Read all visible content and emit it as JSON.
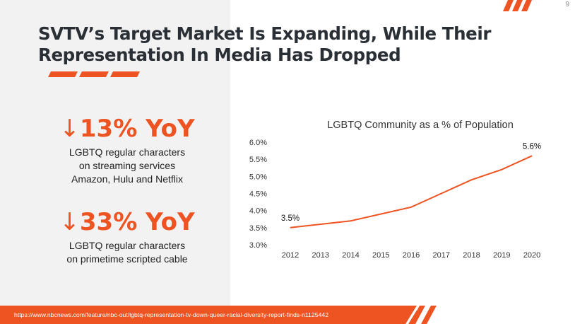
{
  "page": {
    "number": "9"
  },
  "colors": {
    "accent": "#EE5322",
    "title": "#2A2F35",
    "panel": "#F2F2F2"
  },
  "title": {
    "line1": "SVTV’s Target Market Is Expanding, While Their",
    "line2": "Representation In Media Has Dropped"
  },
  "stats": [
    {
      "arrow": "↓",
      "value": "13% YoY",
      "description": [
        "LGBTQ regular characters",
        "on streaming services",
        "Amazon, Hulu and Netflix"
      ]
    },
    {
      "arrow": "↓",
      "value": "33% YoY",
      "description": [
        "LGBTQ regular characters",
        "on primetime scripted cable"
      ]
    }
  ],
  "chart_data": {
    "type": "line",
    "title": "LGBTQ Community as a % of Population",
    "xlabel": "",
    "ylabel": "",
    "x": [
      2012,
      2013,
      2014,
      2015,
      2016,
      2017,
      2018,
      2019,
      2020
    ],
    "x_tick_labels": [
      "2012",
      "2013",
      "2014",
      "2015",
      "2016",
      "2017",
      "2018",
      "2019",
      "2020"
    ],
    "series": [
      {
        "name": "LGBTQ Community as a % of Population",
        "values": [
          3.5,
          3.6,
          3.7,
          3.9,
          4.1,
          4.5,
          4.9,
          5.2,
          5.6
        ]
      }
    ],
    "ylim": [
      3.0,
      6.0
    ],
    "y_ticks": [
      3.0,
      3.5,
      4.0,
      4.5,
      5.0,
      5.5,
      6.0
    ],
    "y_tick_labels": [
      "3.0%",
      "3.5%",
      "4.0%",
      "4.5%",
      "5.0%",
      "5.5%",
      "6.0%"
    ],
    "data_labels": [
      {
        "index": 0,
        "text": "3.5%"
      },
      {
        "index": 8,
        "text": "5.6%"
      }
    ],
    "grid": false,
    "line_color": "#EE5322"
  },
  "footer": {
    "source_url": "https://www.nbcnews.com/feature/nbc-out/lgbtq-representation-tv-down-queer-racial-diversity-report-finds-n1125442"
  }
}
